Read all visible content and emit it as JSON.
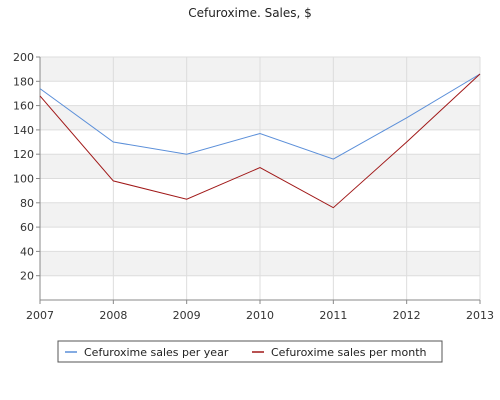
{
  "chart_data": {
    "type": "line",
    "title": "Cefuroxime. Sales, $",
    "xlabel": "",
    "ylabel": "",
    "x": [
      2007,
      2008,
      2009,
      2010,
      2011,
      2012,
      2013
    ],
    "x_tick_labels": [
      "2007",
      "2008",
      "2009",
      "2010",
      "2011",
      "2012",
      "2013"
    ],
    "y_ticks": [
      20,
      40,
      60,
      80,
      100,
      120,
      140,
      160,
      180,
      200
    ],
    "ylim": [
      0,
      200
    ],
    "grid": true,
    "legend_position": "bottom",
    "series": [
      {
        "name": "Cefuroxime sales per year",
        "color": "#5b8fd9",
        "values": [
          174,
          130,
          120,
          137,
          116,
          150,
          186
        ]
      },
      {
        "name": "Cefuroxime sales per month",
        "color": "#a01818",
        "values": [
          168,
          98,
          83,
          109,
          76,
          130,
          186
        ]
      }
    ]
  },
  "colors": {
    "band": "#f2f2f2",
    "grid": "#dddddd",
    "axis": "#888888"
  }
}
